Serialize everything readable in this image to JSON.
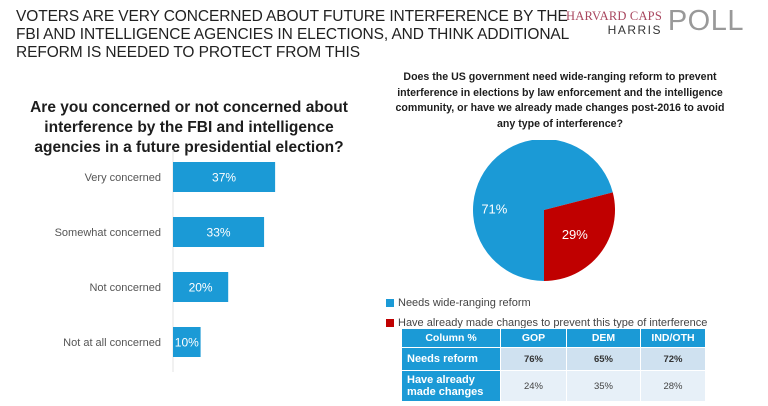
{
  "headline": "VOTERS ARE VERY CONCERNED ABOUT FUTURE INTERFERENCE BY THE FBI AND INTELLIGENCE AGENCIES IN ELECTIONS, AND THINK ADDITIONAL REFORM IS NEEDED TO PROTECT FROM THIS",
  "logo": {
    "line1": "HARVARD CAPS",
    "line2": "HARRIS",
    "poll": "POLL"
  },
  "colors": {
    "bar": "#1b9ad6",
    "pie_primary": "#1b9ad6",
    "pie_secondary": "#c00000",
    "table_header": "#1b9ad6"
  },
  "chart_data": [
    {
      "type": "bar",
      "orientation": "horizontal",
      "title": "Are you concerned or not concerned about interference by the FBI and intelligence agencies in a future presidential election?",
      "categories": [
        "Very concerned",
        "Somewhat concerned",
        "Not concerned",
        "Not at all concerned"
      ],
      "values": [
        37,
        33,
        20,
        10
      ],
      "data_labels": [
        "37%",
        "33%",
        "20%",
        "10%"
      ],
      "unit": "%",
      "xlim": [
        0,
        100
      ],
      "grid": false
    },
    {
      "type": "pie",
      "title": "Does the US government need wide-ranging reform to prevent interference in elections by law enforcement and the intelligence community, or have we already made changes post-2016 to avoid any type of interference?",
      "slices": [
        {
          "label": "Needs wide-ranging reform",
          "value": 71,
          "data_label": "71%",
          "color": "#1b9ad6"
        },
        {
          "label": "Have already made changes to prevent this type of interference",
          "value": 29,
          "data_label": "29%",
          "color": "#c00000"
        }
      ],
      "legend_position": "bottom-left"
    },
    {
      "type": "table",
      "columns": [
        "Column %",
        "GOP",
        "DEM",
        "IND/OTH"
      ],
      "rows": [
        {
          "label": "Needs reform",
          "values": [
            "76%",
            "65%",
            "72%"
          ]
        },
        {
          "label": "Have already made changes",
          "values": [
            "24%",
            "35%",
            "28%"
          ]
        }
      ]
    }
  ]
}
